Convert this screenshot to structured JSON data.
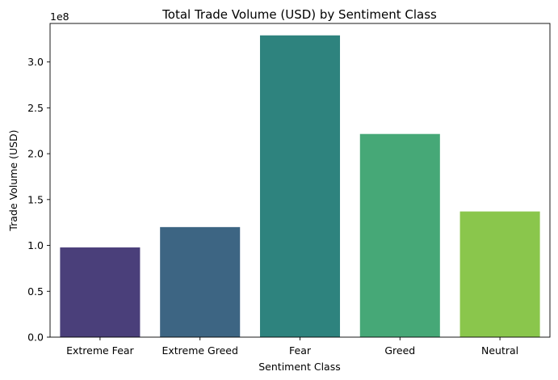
{
  "chart_data": {
    "type": "bar",
    "title": "Total Trade Volume (USD) by Sentiment Class",
    "xlabel": "Sentiment Class",
    "ylabel": "Trade Volume (USD)",
    "y_offset_label": "1e8",
    "categories": [
      "Extreme Fear",
      "Extreme Greed",
      "Fear",
      "Greed",
      "Neutral"
    ],
    "values": [
      97800000,
      120000000,
      329000000,
      221500000,
      137000000
    ],
    "colors": [
      "#4a3f7a",
      "#3d6583",
      "#2e837e",
      "#46a877",
      "#8ac64c"
    ],
    "ylim": [
      0,
      342000000
    ],
    "yticks": [
      0,
      50000000,
      100000000,
      150000000,
      200000000,
      250000000,
      300000000
    ],
    "ytick_labels": [
      "0.0",
      "0.5",
      "1.0",
      "1.5",
      "2.0",
      "2.5",
      "3.0"
    ],
    "grid": false,
    "legend": false
  }
}
